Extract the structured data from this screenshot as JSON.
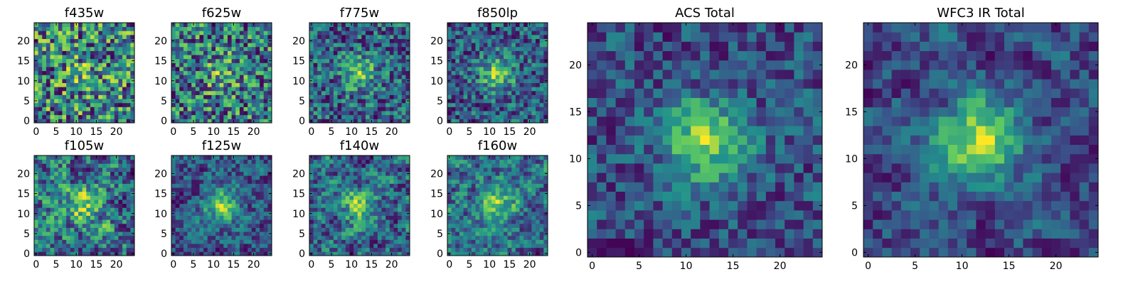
{
  "figure": {
    "colormap": "viridis",
    "colormap_stops": [
      "#440154",
      "#3b528b",
      "#21918c",
      "#5ec962",
      "#fde725"
    ],
    "frame_color": "#000000",
    "background": "#ffffff"
  },
  "chart_data": [
    {
      "type": "heatmap",
      "title": "f435w",
      "grid_size": [
        25,
        25
      ],
      "seed": 11,
      "smoothness": 0.0,
      "center_boost": 0.15,
      "xlim": [
        0,
        24
      ],
      "ylim": [
        0,
        24
      ],
      "x_ticks": [
        0,
        5,
        10,
        15,
        20
      ],
      "y_ticks": [
        0,
        5,
        10,
        15,
        20
      ],
      "x_tick_labels": [
        "0",
        "5",
        "10",
        "15",
        "20"
      ],
      "y_tick_labels": [
        "0",
        "5",
        "10",
        "15",
        "20"
      ],
      "grid": false
    },
    {
      "type": "heatmap",
      "title": "f625w",
      "grid_size": [
        25,
        25
      ],
      "seed": 23,
      "smoothness": 0.0,
      "center_boost": 0.25,
      "xlim": [
        0,
        24
      ],
      "ylim": [
        0,
        24
      ],
      "x_ticks": [
        0,
        5,
        10,
        15,
        20
      ],
      "y_ticks": [
        0,
        5,
        10,
        15,
        20
      ],
      "x_tick_labels": [
        "0",
        "5",
        "10",
        "15",
        "20"
      ],
      "y_tick_labels": [
        "0",
        "5",
        "10",
        "15",
        "20"
      ],
      "grid": false
    },
    {
      "type": "heatmap",
      "title": "f775w",
      "grid_size": [
        25,
        25
      ],
      "seed": 37,
      "smoothness": 0.1,
      "center_boost": 0.45,
      "xlim": [
        0,
        24
      ],
      "ylim": [
        0,
        24
      ],
      "x_ticks": [
        0,
        5,
        10,
        15,
        20
      ],
      "y_ticks": [
        0,
        5,
        10,
        15,
        20
      ],
      "x_tick_labels": [
        "0",
        "5",
        "10",
        "15",
        "20"
      ],
      "y_tick_labels": [
        "0",
        "5",
        "10",
        "15",
        "20"
      ],
      "grid": false
    },
    {
      "type": "heatmap",
      "title": "f850lp",
      "grid_size": [
        25,
        25
      ],
      "seed": 41,
      "smoothness": 0.1,
      "center_boost": 0.55,
      "xlim": [
        0,
        24
      ],
      "ylim": [
        0,
        24
      ],
      "x_ticks": [
        0,
        5,
        10,
        15,
        20
      ],
      "y_ticks": [
        0,
        5,
        10,
        15,
        20
      ],
      "x_tick_labels": [
        "0",
        "5",
        "10",
        "15",
        "20"
      ],
      "y_tick_labels": [
        "0",
        "5",
        "10",
        "15",
        "20"
      ],
      "grid": false
    },
    {
      "type": "heatmap",
      "title": "f105w",
      "grid_size": [
        25,
        25
      ],
      "seed": 53,
      "smoothness": 0.45,
      "center_boost": 0.3,
      "xlim": [
        0,
        24
      ],
      "ylim": [
        0,
        24
      ],
      "x_ticks": [
        0,
        5,
        10,
        15,
        20
      ],
      "y_ticks": [
        0,
        5,
        10,
        15,
        20
      ],
      "x_tick_labels": [
        "0",
        "5",
        "10",
        "15",
        "20"
      ],
      "y_tick_labels": [
        "0",
        "5",
        "10",
        "15",
        "20"
      ],
      "grid": false
    },
    {
      "type": "heatmap",
      "title": "f125w",
      "grid_size": [
        25,
        25
      ],
      "seed": 67,
      "smoothness": 0.45,
      "center_boost": 0.5,
      "xlim": [
        0,
        24
      ],
      "ylim": [
        0,
        24
      ],
      "x_ticks": [
        0,
        5,
        10,
        15,
        20
      ],
      "y_ticks": [
        0,
        5,
        10,
        15,
        20
      ],
      "x_tick_labels": [
        "0",
        "5",
        "10",
        "15",
        "20"
      ],
      "y_tick_labels": [
        "0",
        "5",
        "10",
        "15",
        "20"
      ],
      "grid": false
    },
    {
      "type": "heatmap",
      "title": "f140w",
      "grid_size": [
        25,
        25
      ],
      "seed": 71,
      "smoothness": 0.45,
      "center_boost": 0.4,
      "xlim": [
        0,
        24
      ],
      "ylim": [
        0,
        24
      ],
      "x_ticks": [
        0,
        5,
        10,
        15,
        20
      ],
      "y_ticks": [
        0,
        5,
        10,
        15,
        20
      ],
      "x_tick_labels": [
        "0",
        "5",
        "10",
        "15",
        "20"
      ],
      "y_tick_labels": [
        "0",
        "5",
        "10",
        "15",
        "20"
      ],
      "grid": false
    },
    {
      "type": "heatmap",
      "title": "f160w",
      "grid_size": [
        25,
        25
      ],
      "seed": 83,
      "smoothness": 0.45,
      "center_boost": 0.45,
      "xlim": [
        0,
        24
      ],
      "ylim": [
        0,
        24
      ],
      "x_ticks": [
        0,
        5,
        10,
        15,
        20
      ],
      "y_ticks": [
        0,
        5,
        10,
        15,
        20
      ],
      "x_tick_labels": [
        "0",
        "5",
        "10",
        "15",
        "20"
      ],
      "y_tick_labels": [
        "0",
        "5",
        "10",
        "15",
        "20"
      ],
      "grid": false
    },
    {
      "type": "heatmap",
      "title": "ACS Total",
      "grid_size": [
        25,
        25
      ],
      "seed": 97,
      "smoothness": 0.25,
      "center_boost": 0.7,
      "xlim": [
        0,
        24
      ],
      "ylim": [
        0,
        24
      ],
      "x_ticks": [
        0,
        5,
        10,
        15,
        20
      ],
      "y_ticks": [
        0,
        5,
        10,
        15,
        20
      ],
      "x_tick_labels": [
        "0",
        "5",
        "10",
        "15",
        "20"
      ],
      "y_tick_labels": [
        "0",
        "5",
        "10",
        "15",
        "20"
      ],
      "grid": false
    },
    {
      "type": "heatmap",
      "title": "WFC3 IR Total",
      "grid_size": [
        25,
        25
      ],
      "seed": 101,
      "smoothness": 0.5,
      "center_boost": 0.7,
      "xlim": [
        0,
        24
      ],
      "ylim": [
        0,
        24
      ],
      "x_ticks": [
        0,
        5,
        10,
        15,
        20
      ],
      "y_ticks": [
        0,
        5,
        10,
        15,
        20
      ],
      "x_tick_labels": [
        "0",
        "5",
        "10",
        "15",
        "20"
      ],
      "y_tick_labels": [
        "0",
        "5",
        "10",
        "15",
        "20"
      ],
      "grid": false
    }
  ]
}
